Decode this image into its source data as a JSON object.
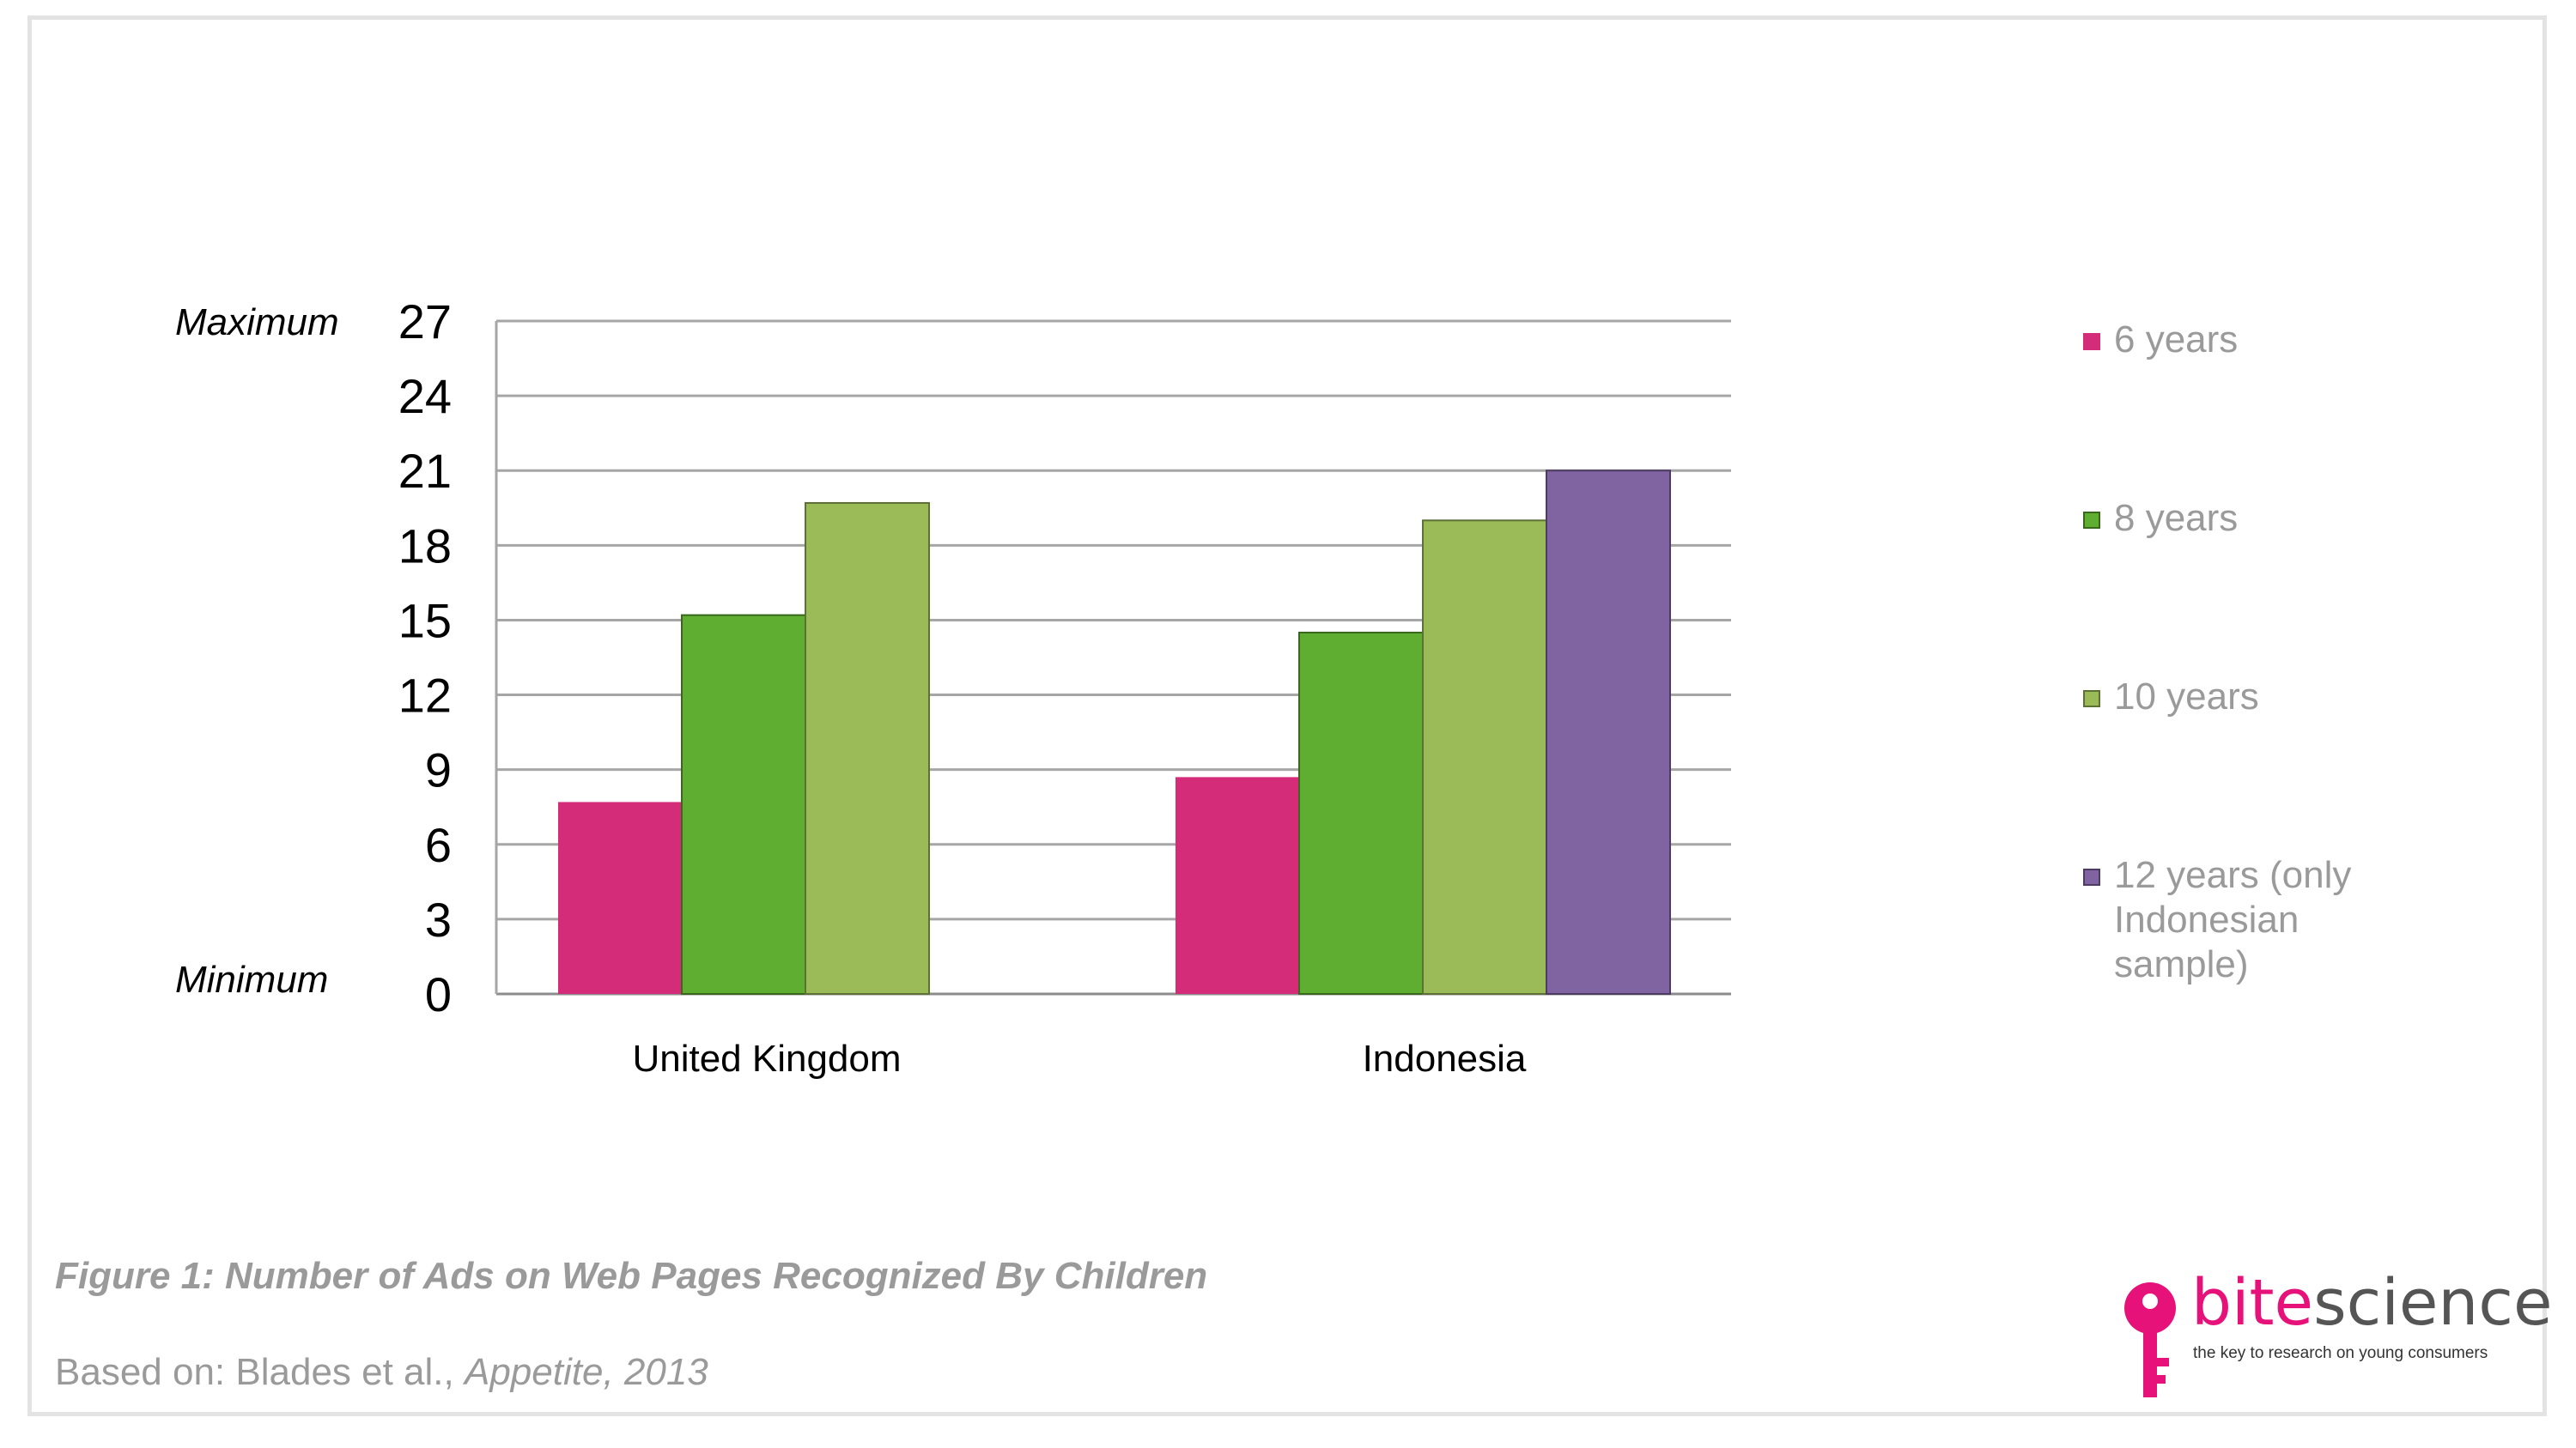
{
  "chart_data": {
    "type": "bar",
    "categories": [
      "United Kingdom",
      "Indonesia"
    ],
    "series": [
      {
        "name": "6 years",
        "color": "#d42c79",
        "values": [
          7.7,
          8.7
        ]
      },
      {
        "name": "8 years",
        "color": "#5fad31",
        "values": [
          15.2,
          14.5
        ]
      },
      {
        "name": "10 years",
        "color": "#9bbb59",
        "values": [
          19.7,
          19.0
        ]
      },
      {
        "name": "12 years (only Indonesian sample)",
        "color": "#8064a2",
        "values": [
          null,
          21.0
        ]
      }
    ],
    "ylim": [
      0,
      27
    ],
    "yticks": [
      "0",
      "3",
      "6",
      "9",
      "12",
      "15",
      "18",
      "21",
      "24",
      "27"
    ],
    "y_annotations": {
      "max": "Maximum",
      "min": "Minimum"
    },
    "grid": true,
    "legend_position": "right"
  },
  "caption": "Figure 1: Number of Ads on Web Pages Recognized By Children",
  "source": {
    "prefix": "Based on: Blades et al., ",
    "journal": "Appetite, 2013"
  },
  "logo": {
    "bite": "bite",
    "science": "science",
    "tagline": "the key to research on young consumers",
    "accent_color": "#e6127a"
  },
  "legend_lines": [
    [
      "6 years"
    ],
    [
      "8 years"
    ],
    [
      "10 years"
    ],
    [
      "12 years (only",
      "Indonesian",
      "sample)"
    ]
  ]
}
